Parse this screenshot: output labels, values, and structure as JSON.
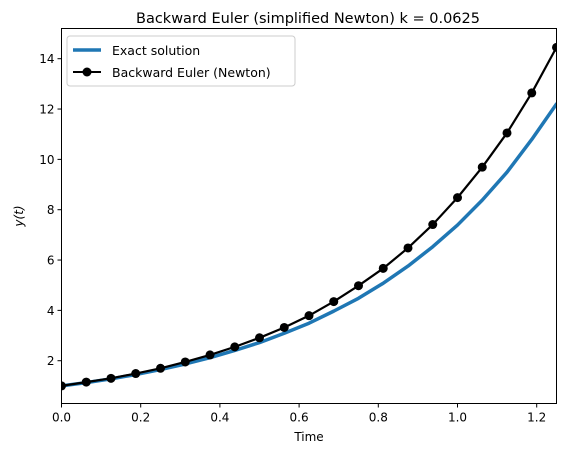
{
  "chart_data": {
    "type": "line",
    "title": "Backward Euler (simplified Newton) k = 0.0625",
    "xlabel": "Time",
    "ylabel": "y(t)",
    "xlim": [
      0,
      1.25
    ],
    "ylim": [
      0.3,
      15.2
    ],
    "xticks": [
      0.0,
      0.2,
      0.4,
      0.6,
      0.8,
      1.0,
      1.2
    ],
    "xtick_labels": [
      "0.0",
      "0.2",
      "0.4",
      "0.6",
      "0.8",
      "1.0",
      "1.2"
    ],
    "yticks": [
      2,
      4,
      6,
      8,
      10,
      12,
      14
    ],
    "ytick_labels": [
      "2",
      "4",
      "6",
      "8",
      "10",
      "12",
      "14"
    ],
    "grid": false,
    "legend_position": "top-left",
    "series": [
      {
        "name": "Exact solution",
        "color": "#1f77b4",
        "style": "solid-thick",
        "x": [
          0.0,
          0.0625,
          0.125,
          0.1875,
          0.25,
          0.3125,
          0.375,
          0.4375,
          0.5,
          0.5625,
          0.625,
          0.6875,
          0.75,
          0.8125,
          0.875,
          0.9375,
          1.0,
          1.0625,
          1.125,
          1.1875,
          1.25
        ],
        "values": [
          1.0,
          1.13,
          1.28,
          1.45,
          1.65,
          1.87,
          2.12,
          2.41,
          2.72,
          3.09,
          3.49,
          3.97,
          4.48,
          5.08,
          5.76,
          6.53,
          7.39,
          8.38,
          9.49,
          10.79,
          12.2
        ]
      },
      {
        "name": "Backward Euler (Newton)",
        "color": "#000000",
        "style": "line-with-markers",
        "x": [
          0.0,
          0.0625,
          0.125,
          0.1875,
          0.25,
          0.3125,
          0.375,
          0.4375,
          0.5,
          0.5625,
          0.625,
          0.6875,
          0.75,
          0.8125,
          0.875,
          0.9375,
          1.0,
          1.0625,
          1.125,
          1.1875,
          1.25
        ],
        "values": [
          1.0,
          1.15,
          1.3,
          1.49,
          1.7,
          1.95,
          2.23,
          2.55,
          2.91,
          3.32,
          3.79,
          4.35,
          4.98,
          5.67,
          6.48,
          7.41,
          8.48,
          9.69,
          11.05,
          12.64,
          14.45
        ]
      }
    ]
  }
}
